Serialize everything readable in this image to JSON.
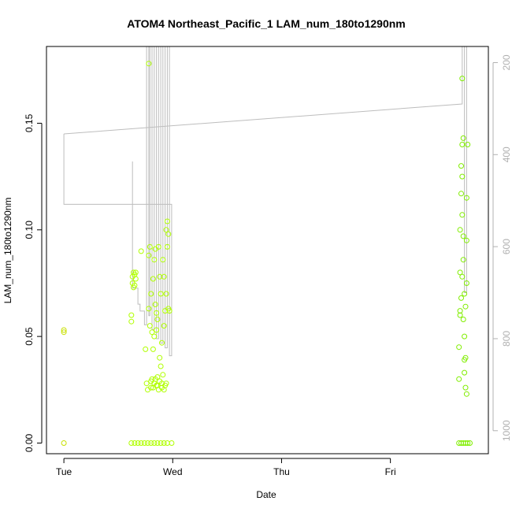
{
  "chart_data": {
    "type": "scatter",
    "title": "ATOM4 Northeast_Pacific_1 LAM_num_180to1290nm",
    "xlabel": "Date",
    "ylabel": "LAM_num_180to1290nm",
    "x_ticks": [
      {
        "label": "Tue",
        "day": 0
      },
      {
        "label": "Wed",
        "day": 1
      },
      {
        "label": "Thu",
        "day": 2
      },
      {
        "label": "Fri",
        "day": 3
      }
    ],
    "xlim_days": [
      -0.16,
      3.9
    ],
    "ylim": [
      -0.005,
      0.186
    ],
    "y_ticks": [
      0.0,
      0.05,
      0.1,
      0.15
    ],
    "y_tick_labels": [
      "0.00",
      "0.05",
      "0.10",
      "0.15"
    ],
    "y2_ticks": [
      200,
      400,
      600,
      800,
      1000
    ],
    "y2_tick_labels": [
      "200",
      "400",
      "600",
      "800",
      "1000"
    ],
    "y2lim": [
      1050,
      165
    ],
    "y2_reversed": true,
    "grid": false,
    "colors": {
      "series_early": "#c8e000",
      "series_mid": "#b0ff00",
      "series_late": "#80ee00",
      "line": "#bdbdbd",
      "axis": "#000000",
      "right_axis": "#b0b0b0"
    },
    "series": [
      {
        "marker": "open-circle",
        "points": [
          [
            0.0,
            0.0
          ],
          [
            0.0,
            0.052
          ],
          [
            0.0,
            0.053
          ],
          [
            0.62,
            0.06
          ],
          [
            0.62,
            0.057
          ],
          [
            0.63,
            0.075
          ],
          [
            0.63,
            0.078
          ],
          [
            0.64,
            0.08
          ],
          [
            0.64,
            0.073
          ],
          [
            0.65,
            0.079
          ],
          [
            0.65,
            0.074
          ],
          [
            0.66,
            0.077
          ],
          [
            0.66,
            0.08
          ],
          [
            0.71,
            0.09
          ],
          [
            0.75,
            0.044
          ],
          [
            0.76,
            0.028
          ],
          [
            0.77,
            0.025
          ],
          [
            0.78,
            0.063
          ],
          [
            0.78,
            0.088
          ],
          [
            0.79,
            0.055
          ],
          [
            0.79,
            0.092
          ],
          [
            0.8,
            0.026
          ],
          [
            0.8,
            0.07
          ],
          [
            0.81,
            0.052
          ],
          [
            0.81,
            0.03
          ],
          [
            0.82,
            0.044
          ],
          [
            0.82,
            0.077
          ],
          [
            0.83,
            0.086
          ],
          [
            0.83,
            0.028
          ],
          [
            0.84,
            0.065
          ],
          [
            0.84,
            0.091
          ],
          [
            0.85,
            0.053
          ],
          [
            0.85,
            0.027
          ],
          [
            0.86,
            0.031
          ],
          [
            0.86,
            0.058
          ],
          [
            0.87,
            0.092
          ],
          [
            0.87,
            0.025
          ],
          [
            0.88,
            0.078
          ],
          [
            0.88,
            0.04
          ],
          [
            0.89,
            0.036
          ],
          [
            0.89,
            0.07
          ],
          [
            0.9,
            0.047
          ],
          [
            0.9,
            0.028
          ],
          [
            0.91,
            0.086
          ],
          [
            0.91,
            0.032
          ],
          [
            0.92,
            0.055
          ],
          [
            0.92,
            0.078
          ],
          [
            0.93,
            0.062
          ],
          [
            0.93,
            0.027
          ],
          [
            0.94,
            0.1
          ],
          [
            0.94,
            0.07
          ],
          [
            0.95,
            0.104
          ],
          [
            0.95,
            0.092
          ],
          [
            0.96,
            0.098
          ],
          [
            0.96,
            0.063
          ],
          [
            0.97,
            0.062
          ],
          [
            0.78,
            0.178
          ],
          [
            0.8,
            0.029
          ],
          [
            0.82,
            0.026
          ],
          [
            0.84,
            0.03
          ],
          [
            0.86,
            0.027
          ],
          [
            0.88,
            0.029
          ],
          [
            0.9,
            0.026
          ],
          [
            0.92,
            0.025
          ],
          [
            0.94,
            0.028
          ],
          [
            0.85,
            0.061
          ],
          [
            0.83,
            0.05
          ],
          [
            0.62,
            0.0
          ],
          [
            0.65,
            0.0
          ],
          [
            0.68,
            0.0
          ],
          [
            0.71,
            0.0
          ],
          [
            0.74,
            0.0
          ],
          [
            0.77,
            0.0
          ],
          [
            0.8,
            0.0
          ],
          [
            0.83,
            0.0
          ],
          [
            0.86,
            0.0
          ],
          [
            0.89,
            0.0
          ],
          [
            0.92,
            0.0
          ],
          [
            0.95,
            0.0
          ],
          [
            0.99,
            0.0
          ],
          [
            3.63,
            0.0
          ],
          [
            3.65,
            0.0
          ],
          [
            3.67,
            0.0
          ],
          [
            3.69,
            0.0
          ],
          [
            3.71,
            0.0
          ],
          [
            3.73,
            0.0
          ],
          [
            3.63,
            0.03
          ],
          [
            3.63,
            0.045
          ],
          [
            3.64,
            0.06
          ],
          [
            3.64,
            0.08
          ],
          [
            3.64,
            0.1
          ],
          [
            3.65,
            0.117
          ],
          [
            3.65,
            0.13
          ],
          [
            3.66,
            0.171
          ],
          [
            3.66,
            0.125
          ],
          [
            3.66,
            0.14
          ],
          [
            3.67,
            0.143
          ],
          [
            3.67,
            0.097
          ],
          [
            3.68,
            0.07
          ],
          [
            3.68,
            0.05
          ],
          [
            3.68,
            0.033
          ],
          [
            3.69,
            0.04
          ],
          [
            3.69,
            0.064
          ],
          [
            3.7,
            0.075
          ],
          [
            3.7,
            0.115
          ],
          [
            3.71,
            0.14
          ],
          [
            3.64,
            0.062
          ],
          [
            3.65,
            0.068
          ],
          [
            3.66,
            0.078
          ],
          [
            3.67,
            0.058
          ],
          [
            3.68,
            0.039
          ],
          [
            3.69,
            0.026
          ],
          [
            3.7,
            0.023
          ],
          [
            3.67,
            0.086
          ],
          [
            3.66,
            0.107
          ],
          [
            3.7,
            0.095
          ]
        ]
      }
    ],
    "line_series": {
      "axis": "y2",
      "points": [
        [
          0.0,
          355
        ],
        [
          0.0,
          508
        ],
        [
          0.99,
          508
        ],
        [
          0.99,
          837
        ],
        [
          0.97,
          837
        ],
        [
          0.97,
          165
        ],
        [
          0.95,
          165
        ],
        [
          0.95,
          820
        ],
        [
          0.93,
          820
        ],
        [
          0.93,
          165
        ],
        [
          0.91,
          165
        ],
        [
          0.91,
          810
        ],
        [
          0.89,
          810
        ],
        [
          0.89,
          165
        ],
        [
          0.87,
          165
        ],
        [
          0.87,
          800
        ],
        [
          0.85,
          800
        ],
        [
          0.85,
          165
        ],
        [
          0.83,
          165
        ],
        [
          0.83,
          780
        ],
        [
          0.81,
          780
        ],
        [
          0.81,
          165
        ],
        [
          0.79,
          165
        ],
        [
          0.79,
          750
        ],
        [
          0.78,
          750
        ],
        [
          0.78,
          165
        ],
        [
          0.76,
          165
        ],
        [
          0.76,
          770
        ],
        [
          0.74,
          770
        ],
        [
          0.74,
          740
        ],
        [
          0.7,
          740
        ],
        [
          0.7,
          725
        ],
        [
          0.68,
          725
        ],
        [
          0.68,
          690
        ],
        [
          0.63,
          690
        ],
        [
          0.63,
          415
        ],
        null,
        [
          0.0,
          355
        ],
        [
          3.66,
          290
        ],
        [
          3.66,
          165
        ],
        [
          3.68,
          165
        ],
        [
          3.68,
          700
        ],
        [
          3.7,
          700
        ],
        [
          3.7,
          165
        ]
      ]
    }
  }
}
